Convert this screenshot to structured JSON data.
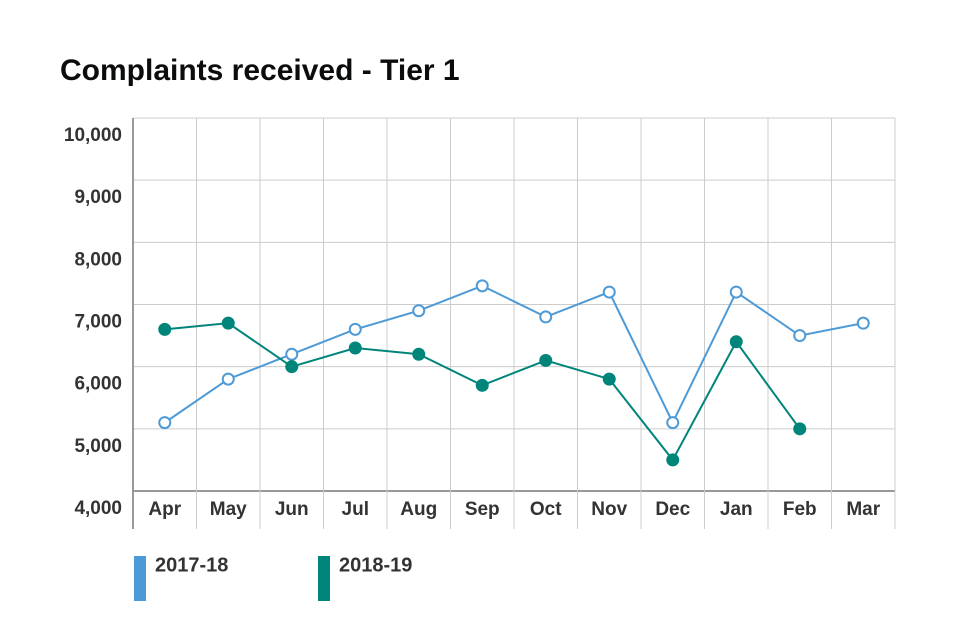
{
  "chart_data": {
    "type": "line",
    "title": "Complaints received - Tier 1",
    "categories": [
      "Apr",
      "May",
      "Jun",
      "Jul",
      "Aug",
      "Sep",
      "Oct",
      "Nov",
      "Dec",
      "Jan",
      "Feb",
      "Mar"
    ],
    "series": [
      {
        "name": "2017-18",
        "color": "#4d9ad6",
        "marker": "open",
        "values": [
          5100,
          5800,
          6200,
          6600,
          6900,
          7300,
          6800,
          7200,
          5100,
          7200,
          6500,
          6700
        ]
      },
      {
        "name": "2018-19",
        "color": "#00857a",
        "marker": "filled",
        "values": [
          6600,
          6700,
          6000,
          6300,
          6200,
          5700,
          6100,
          5800,
          4500,
          6400,
          5000,
          null
        ]
      }
    ],
    "ylim": [
      4000,
      10000
    ],
    "yticks": [
      {
        "value": 4000,
        "label": "4,000"
      },
      {
        "value": 5000,
        "label": "5,000"
      },
      {
        "value": 6000,
        "label": "6,000"
      },
      {
        "value": 7000,
        "label": "7,000"
      },
      {
        "value": 8000,
        "label": "8,000"
      },
      {
        "value": 9000,
        "label": "9,000"
      },
      {
        "value": 10000,
        "label": "10,000"
      }
    ],
    "grid": true
  }
}
